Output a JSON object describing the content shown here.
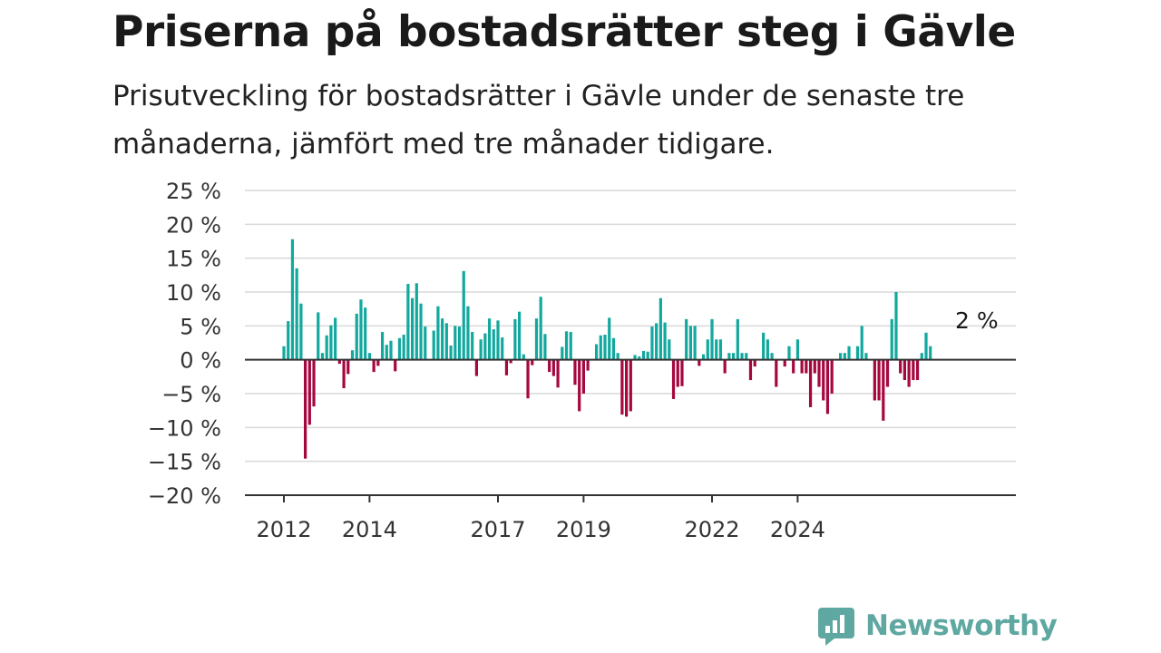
{
  "title": "Priserna på bostadsrätter steg i Gävle",
  "subtitle": "Prisutveckling för bostadsrätter i Gävle under de senaste tre månaderna, jämfört med tre månader tidigare.",
  "brand": {
    "name": "Newsworthy",
    "icon": "newsworthy-logo-icon"
  },
  "colors": {
    "positive": "#13a89e",
    "negative": "#a5073f",
    "grid": "#d9d9d9",
    "axis": "#333333"
  },
  "chart_data": {
    "type": "bar",
    "title": "Priserna på bostadsrätter steg i Gävle",
    "subtitle": "Prisutveckling för bostadsrätter i Gävle under de senaste tre månaderna, jämfört med tre månader tidigare.",
    "xlabel": "",
    "ylabel": "",
    "unit": "%",
    "ylim": [
      -20,
      25
    ],
    "yticks": [
      25,
      20,
      15,
      10,
      5,
      0,
      -5,
      -10,
      -15,
      -20
    ],
    "ytick_labels": [
      "25 %",
      "20 %",
      "15 %",
      "10 %",
      "5 %",
      "0 %",
      "−5 %",
      "−10 %",
      "−15 %",
      "−20 %"
    ],
    "xticks": [
      {
        "label": "2012",
        "index": 0
      },
      {
        "label": "2014",
        "index": 20
      },
      {
        "label": "2017",
        "index": 50
      },
      {
        "label": "2019",
        "index": 70
      },
      {
        "label": "2022",
        "index": 100
      },
      {
        "label": "2024",
        "index": 120
      }
    ],
    "grid": true,
    "annotation": {
      "text": "2 %",
      "index": 128
    },
    "values": [
      2,
      5.7,
      17.8,
      13.5,
      8.3,
      -14.6,
      -9.6,
      -6.9,
      7,
      1,
      3.6,
      5.1,
      6.2,
      -0.6,
      -4.2,
      -2.1,
      1.4,
      6.8,
      8.9,
      7.7,
      1,
      -1.8,
      -0.9,
      4.1,
      2.2,
      2.8,
      -1.7,
      3.2,
      3.7,
      11.2,
      9.1,
      11.3,
      8.3,
      4.9,
      0,
      4.3,
      7.9,
      6.1,
      5.4,
      2.1,
      5,
      4.9,
      13.1,
      7.9,
      4.1,
      -2.4,
      3,
      3.9,
      6.1,
      4.5,
      5.8,
      3.3,
      -2.3,
      -0.5,
      6,
      7.1,
      0.8,
      -5.7,
      -0.8,
      6.1,
      9.3,
      3.8,
      -1.8,
      -2.4,
      -4.1,
      1.9,
      4.2,
      4.1,
      -3.7,
      -7.6,
      -5,
      -1.6,
      0,
      2.3,
      3.6,
      3.7,
      6.2,
      3.2,
      1,
      -8.1,
      -8.4,
      -7.6,
      0.7,
      0.5,
      1.3,
      1.2,
      4.9,
      5.4,
      9.1,
      5.5,
      3,
      -5.8,
      -4,
      -3.9,
      6,
      5,
      5,
      -0.9,
      0.8,
      3,
      6,
      3,
      3,
      -2,
      1,
      1,
      6,
      1,
      1,
      -3,
      -1,
      0,
      4,
      3,
      1,
      -4,
      0,
      -1,
      2,
      -2,
      3,
      -2,
      -2,
      -7,
      -2,
      -4,
      -6,
      -8,
      -5,
      0,
      1,
      1,
      2,
      0,
      2,
      5,
      1,
      0,
      -6,
      -6,
      -9,
      -4,
      6,
      10,
      -2,
      -3,
      -4,
      -3,
      -3,
      1,
      4,
      2
    ]
  }
}
